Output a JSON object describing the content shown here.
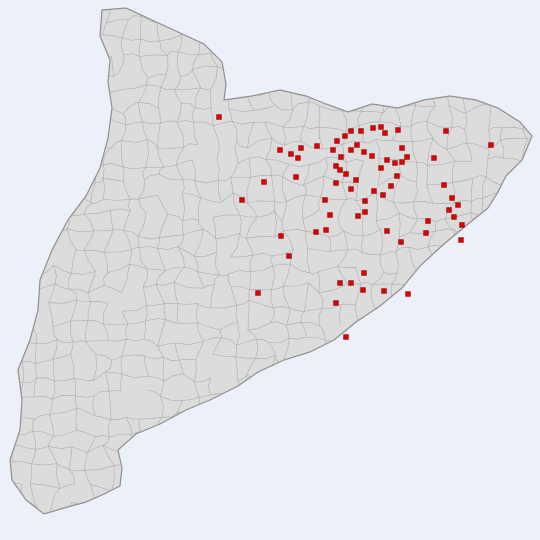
{
  "map": {
    "region": "Catalonia",
    "subdivision_level": "municipalities",
    "colors": {
      "background": "#ecf0f8",
      "land_fill": "#dcdcdc",
      "border": "#9f9f9f",
      "marker": "#e00000"
    },
    "marker_style": "small red square",
    "marker_count": 71
  }
}
